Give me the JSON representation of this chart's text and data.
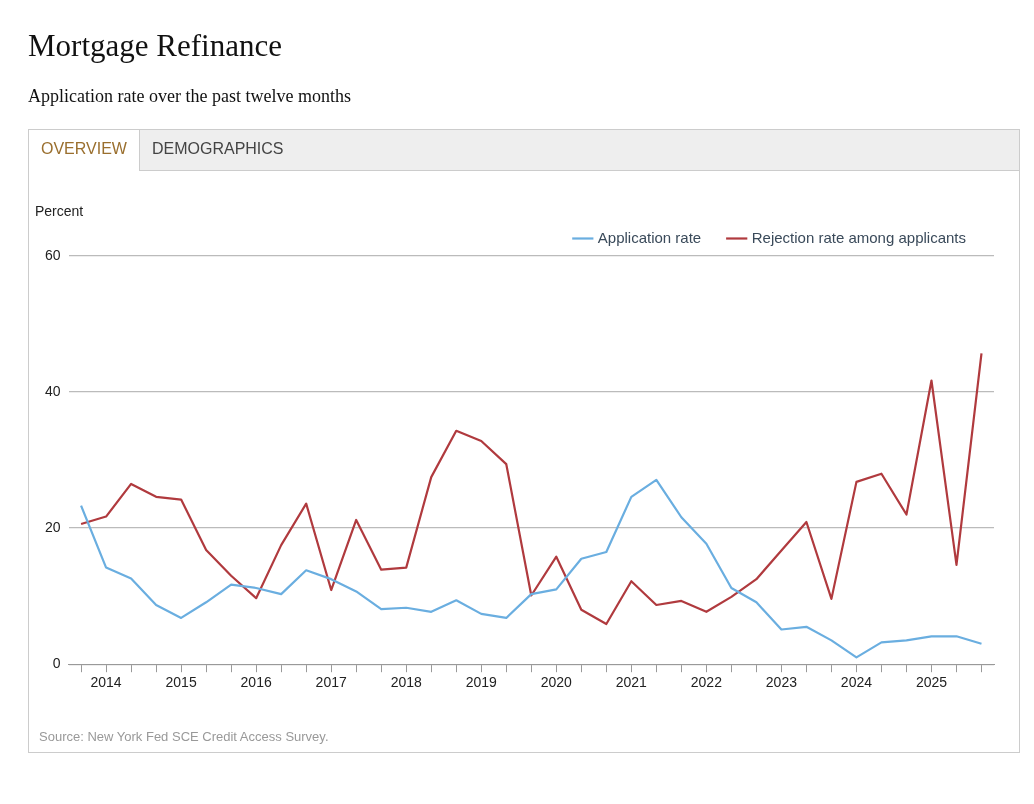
{
  "chart_data": {
    "type": "line",
    "title": "Mortgage Refinance",
    "subtitle": "Application rate over the past twelve months",
    "ylabel": "Percent",
    "annotations": [
      "OVERVIEW",
      "DEMOGRAPHICS",
      "Source: New York Fed SCE Credit Access Survey."
    ],
    "categories": [
      null,
      "2014",
      null,
      null,
      "2015",
      null,
      null,
      "2016",
      null,
      null,
      "2017",
      null,
      null,
      "2018",
      null,
      null,
      "2019",
      null,
      null,
      "2020",
      null,
      null,
      "2021",
      null,
      null,
      "2022",
      null,
      null,
      "2023",
      null,
      null,
      "2024",
      null,
      null,
      "2025",
      null,
      null
    ],
    "series": [
      {
        "name": "Application rate",
        "color": "#6aaee0",
        "values": [
          23.3,
          14.2,
          12.6,
          8.7,
          6.8,
          9.1,
          11.7,
          11.2,
          10.3,
          13.8,
          12.5,
          10.7,
          8.1,
          8.3,
          7.7,
          9.4,
          7.4,
          6.8,
          10.3,
          11.0,
          15.5,
          16.5,
          24.6,
          27.1,
          21.6,
          17.7,
          11.2,
          9.1,
          5.1,
          5.5,
          3.5,
          1.0,
          3.2,
          3.5,
          4.1,
          4.1,
          3.0
        ]
      },
      {
        "name": "Rejection rate among applicants",
        "color": "#b03a3e",
        "values": [
          20.6,
          21.7,
          26.5,
          24.6,
          24.2,
          16.8,
          13.0,
          9.7,
          17.5,
          23.6,
          10.9,
          21.2,
          13.9,
          14.2,
          27.5,
          34.3,
          32.8,
          29.4,
          10.1,
          15.8,
          8.0,
          5.9,
          12.2,
          8.7,
          9.3,
          7.7,
          9.9,
          12.5,
          16.7,
          20.9,
          9.6,
          26.8,
          28.0,
          22.0,
          41.7,
          14.6,
          45.7
        ]
      }
    ],
    "ylim": [
      0,
      60
    ],
    "yticks": [
      0,
      20,
      40,
      60
    ],
    "grid": "y",
    "legend": "top right",
    "marker": "none",
    "line_style": "solid"
  }
}
